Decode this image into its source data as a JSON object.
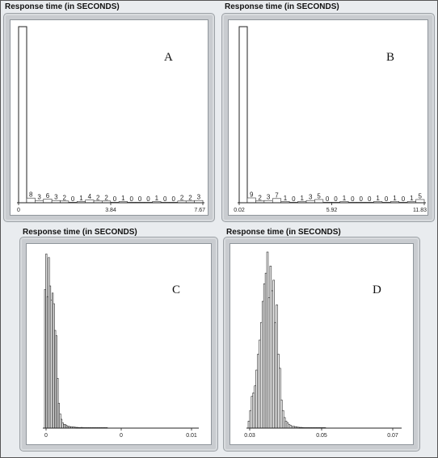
{
  "panels": {
    "A": {
      "title": "Response time (in SECONDS)",
      "label": "A",
      "chart_data": {
        "type": "bar",
        "xlabel": "Response time (in SECONDS)",
        "x_ticks": [
          "0",
          "3.84",
          "7.67"
        ],
        "first_bar_relative_height": 1.0,
        "counts": [
          "8",
          "3",
          "6",
          "3",
          "2",
          "0",
          "1",
          "4",
          "2",
          "2",
          "0",
          "1",
          "0",
          "0",
          "0",
          "1",
          "0",
          "0",
          "2",
          "2",
          "3"
        ]
      }
    },
    "B": {
      "title": "Response time (in SECONDS)",
      "label": "B",
      "chart_data": {
        "type": "bar",
        "xlabel": "Response time (in SECONDS)",
        "x_ticks": [
          "0.02",
          "5.92",
          "11.83"
        ],
        "first_bar_relative_height": 1.0,
        "counts": [
          "9",
          "2",
          "3",
          "7",
          "1",
          "0",
          "1",
          "3",
          "5",
          "0",
          "0",
          "1",
          "0",
          "0",
          "0",
          "1",
          "0",
          "1",
          "0",
          "1",
          "5"
        ]
      }
    },
    "C": {
      "title": "Response time (in SECONDS)",
      "label": "C",
      "chart_data": {
        "type": "bar",
        "xlabel": "Response time (in SECONDS)",
        "x_ticks": [
          "0",
          "0",
          "0.01"
        ],
        "values": [
          0.78,
          0.98,
          0.74,
          0.96,
          0.8,
          0.72,
          0.76,
          0.7,
          0.55,
          0.52,
          0.28,
          0.14,
          0.08,
          0.05,
          0.03,
          0.02,
          0.02,
          0.015,
          0.01,
          0.01,
          0.008,
          0.007,
          0.006,
          0.006,
          0.005,
          0.004,
          0.004,
          0.003,
          0.003,
          0.004,
          0.003,
          0.002,
          0.002,
          0.002,
          0.002,
          0.001,
          0.002,
          0.001,
          0.001,
          0.001,
          0.001,
          0.001,
          0.001,
          0.001,
          0.001,
          0.001,
          0.001,
          0.001,
          0.001,
          0.001
        ]
      }
    },
    "D": {
      "title": "Response time (in SECONDS)",
      "label": "D",
      "chart_data": {
        "type": "bar",
        "xlabel": "Response time (in SECONDS)",
        "x_ticks": [
          "0.03",
          "0.05",
          "0.07"
        ],
        "values": [
          0.04,
          0.1,
          0.18,
          0.2,
          0.24,
          0.33,
          0.42,
          0.5,
          0.6,
          0.72,
          0.82,
          0.88,
          1.0,
          0.74,
          0.92,
          0.78,
          0.84,
          0.6,
          0.7,
          0.42,
          0.34,
          0.16,
          0.1,
          0.06,
          0.04,
          0.03,
          0.02,
          0.015,
          0.01,
          0.01,
          0.008,
          0.006,
          0.005,
          0.004,
          0.004,
          0.003,
          0.002,
          0.002,
          0.002,
          0.001,
          0.001,
          0.001,
          0.001,
          0.001,
          0.001,
          0.001,
          0.001,
          0.001,
          0.001,
          0.001
        ]
      }
    }
  }
}
